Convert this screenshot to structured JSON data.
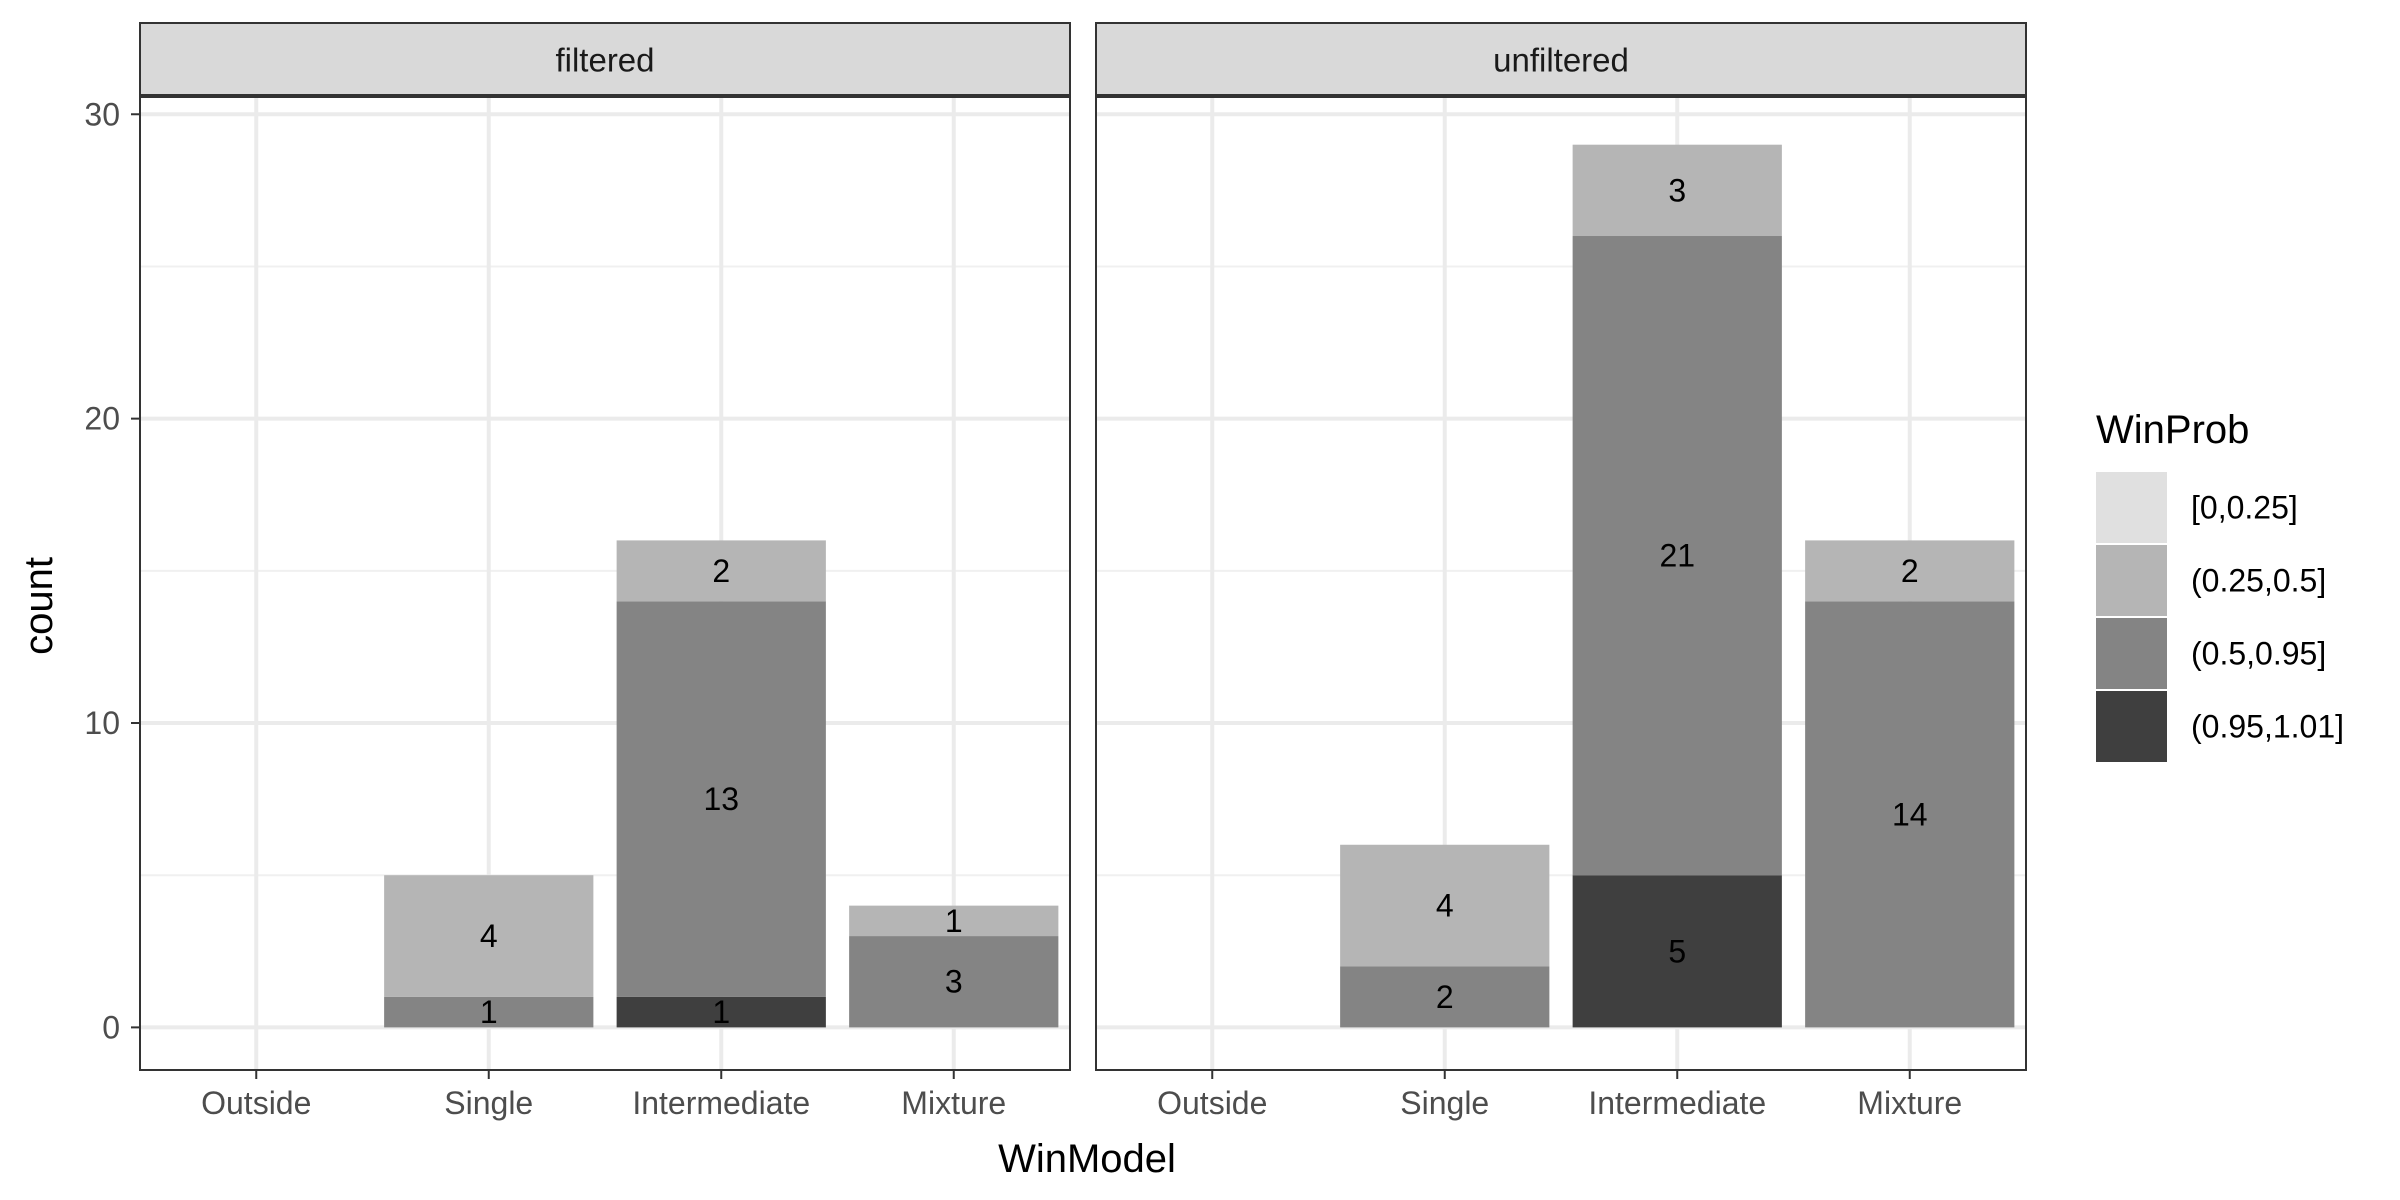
{
  "chart_data": {
    "type": "bar",
    "stacked": true,
    "facet_by": "",
    "xlabel": "WinModel",
    "ylabel": "count",
    "categories": [
      "Outside",
      "Single",
      "Intermediate",
      "Mixture"
    ],
    "ylim": [
      -1.4,
      30.6
    ],
    "yticks": [
      0,
      10,
      20,
      30
    ],
    "grid": true,
    "legend": {
      "title": "WinProb",
      "position": "right",
      "entries": [
        {
          "label": "[0,0.25]",
          "color": "#e0e0e0"
        },
        {
          "label": "(0.25,0.5]",
          "color": "#b5b5b5"
        },
        {
          "label": "(0.5,0.95]",
          "color": "#848484"
        },
        {
          "label": "(0.95,1.01]",
          "color": "#3f3f3f"
        }
      ]
    },
    "panels": [
      {
        "strip": "filtered",
        "series": [
          {
            "name": "[0,0.25]",
            "values": [
              0,
              0,
              0,
              0
            ]
          },
          {
            "name": "(0.25,0.5]",
            "values": [
              0,
              4,
              2,
              1
            ]
          },
          {
            "name": "(0.5,0.95]",
            "values": [
              0,
              1,
              13,
              3
            ]
          },
          {
            "name": "(0.95,1.01]",
            "values": [
              0,
              0,
              1,
              0
            ]
          }
        ]
      },
      {
        "strip": "unfiltered",
        "series": [
          {
            "name": "[0,0.25]",
            "values": [
              0,
              0,
              0,
              0
            ]
          },
          {
            "name": "(0.25,0.5]",
            "values": [
              0,
              4,
              3,
              2
            ]
          },
          {
            "name": "(0.5,0.95]",
            "values": [
              0,
              2,
              21,
              14
            ]
          },
          {
            "name": "(0.95,1.01]",
            "values": [
              0,
              0,
              5,
              0
            ]
          }
        ]
      }
    ]
  }
}
